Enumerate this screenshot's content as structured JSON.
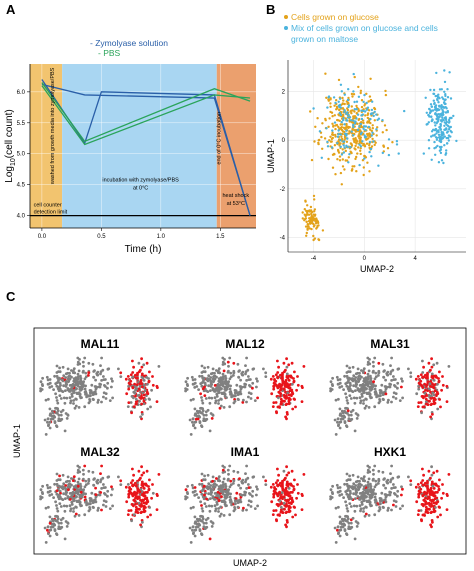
{
  "panels": {
    "a": "A",
    "b": "B",
    "c": "C"
  },
  "colors": {
    "zymolyase": "#2a5fa8",
    "pbs": "#2aa45a",
    "glucose": "#e3a21a",
    "maltose": "#4bb3dd",
    "express": "#e8141a",
    "bg_cell": "#808080",
    "zone_growth": "#f2c46f",
    "zone_incubation": "#a9d6f2",
    "zone_heat": "#eba06e"
  },
  "chart_data": [
    {
      "type": "line",
      "panel": "A",
      "xlabel": "Time (h)",
      "ylabel": "Log10(cell count)",
      "xlim": [
        -0.1,
        1.8
      ],
      "ylim": [
        3.8,
        6.45
      ],
      "xticks": [
        0.0,
        0.5,
        1.0,
        1.5
      ],
      "yticks": [
        4.0,
        4.5,
        5.0,
        5.5,
        6.0
      ],
      "xtick_labels": [
        "0.0",
        "0.5",
        "1.0",
        "1.5"
      ],
      "ytick_labels": [
        "4.0",
        "4.5",
        "5.0",
        "5.5",
        "6.0"
      ],
      "series": [
        {
          "name": "Zymolyase solution",
          "color": "#2a5fa8",
          "lines": [
            [
              [
                0.0,
                6.2
              ],
              [
                0.36,
                5.17
              ],
              [
                0.5,
                6.0
              ],
              [
                1.45,
                5.95
              ],
              [
                1.75,
                4.0
              ]
            ],
            [
              [
                0.0,
                6.12
              ],
              [
                0.36,
                5.95
              ],
              [
                1.45,
                5.9
              ],
              [
                1.75,
                4.0
              ]
            ]
          ]
        },
        {
          "name": "PBS",
          "color": "#2aa45a",
          "lines": [
            [
              [
                0.0,
                6.15
              ],
              [
                0.36,
                5.2
              ],
              [
                1.45,
                6.05
              ],
              [
                1.75,
                5.85
              ]
            ],
            [
              [
                0.0,
                6.1
              ],
              [
                0.36,
                5.15
              ],
              [
                1.45,
                5.95
              ],
              [
                1.75,
                5.9
              ]
            ]
          ]
        }
      ],
      "zones": [
        {
          "from": -0.1,
          "to": 0.17,
          "label": "washed from growth media into zymolyase/PBS"
        },
        {
          "from": 0.17,
          "to": 1.47,
          "label": "incubation with zymolyase/PBS at 0°C"
        },
        {
          "from": 1.47,
          "to": 1.8,
          "label": "heat shock at 53°C"
        }
      ],
      "zone_line_label": "end of 0°C incubation",
      "detection_limit": {
        "y": 4.0,
        "label": "cell counter detection limit"
      },
      "legend": [
        "Zymolyase solution",
        "PBS"
      ]
    },
    {
      "type": "scatter",
      "panel": "B",
      "xlabel": "UMAP-2",
      "ylabel": "UMAP-1",
      "xlim": [
        -6,
        8
      ],
      "ylim": [
        -4.6,
        3.3
      ],
      "xticks": [
        -4,
        0,
        4
      ],
      "yticks": [
        -4,
        -2,
        0,
        2
      ],
      "xtick_labels": [
        "-4",
        "0",
        "4"
      ],
      "ytick_labels": [
        "-4",
        "-2",
        "0",
        "2"
      ],
      "legend": [
        "Cells grown on glucose",
        "Mix of cells grown on glucose and cells grown on maltose"
      ],
      "legend_lines": [
        "Cells grown on glucose",
        "Mix of cells grown on glucose and cells",
        "grown on maltose"
      ],
      "clusters": [
        {
          "series": "Cells grown on glucose",
          "color": "#e3a21a",
          "cx": -1.0,
          "cy": 0.5,
          "sx": 2.1,
          "sy": 1.4,
          "n": 420
        },
        {
          "series": "Cells grown on glucose",
          "color": "#e3a21a",
          "cx": -4.2,
          "cy": -3.2,
          "sx": 0.6,
          "sy": 0.7,
          "n": 90
        },
        {
          "series": "Mix of cells grown on glucose and cells grown on maltose",
          "color": "#4bb3dd",
          "cx": -0.8,
          "cy": 0.6,
          "sx": 2.0,
          "sy": 1.3,
          "n": 140
        },
        {
          "series": "Mix of cells grown on glucose and cells grown on maltose",
          "color": "#4bb3dd",
          "cx": 6.0,
          "cy": 0.8,
          "sx": 0.8,
          "sy": 1.3,
          "n": 230
        }
      ]
    },
    {
      "type": "scatter",
      "panel": "C",
      "xlabel": "UMAP-2",
      "ylabel": "UMAP-1",
      "panels": [
        {
          "gene": "MAL11",
          "express_fraction_right": 0.55,
          "express_fraction_left": 0.03
        },
        {
          "gene": "MAL12",
          "express_fraction_right": 0.92,
          "express_fraction_left": 0.06
        },
        {
          "gene": "MAL31",
          "express_fraction_right": 0.75,
          "express_fraction_left": 0.04
        },
        {
          "gene": "MAL32",
          "express_fraction_right": 0.93,
          "express_fraction_left": 0.07
        },
        {
          "gene": "IMA1",
          "express_fraction_right": 0.92,
          "express_fraction_left": 0.14
        },
        {
          "gene": "HXK1",
          "express_fraction_right": 0.88,
          "express_fraction_left": 0.05
        }
      ]
    }
  ]
}
